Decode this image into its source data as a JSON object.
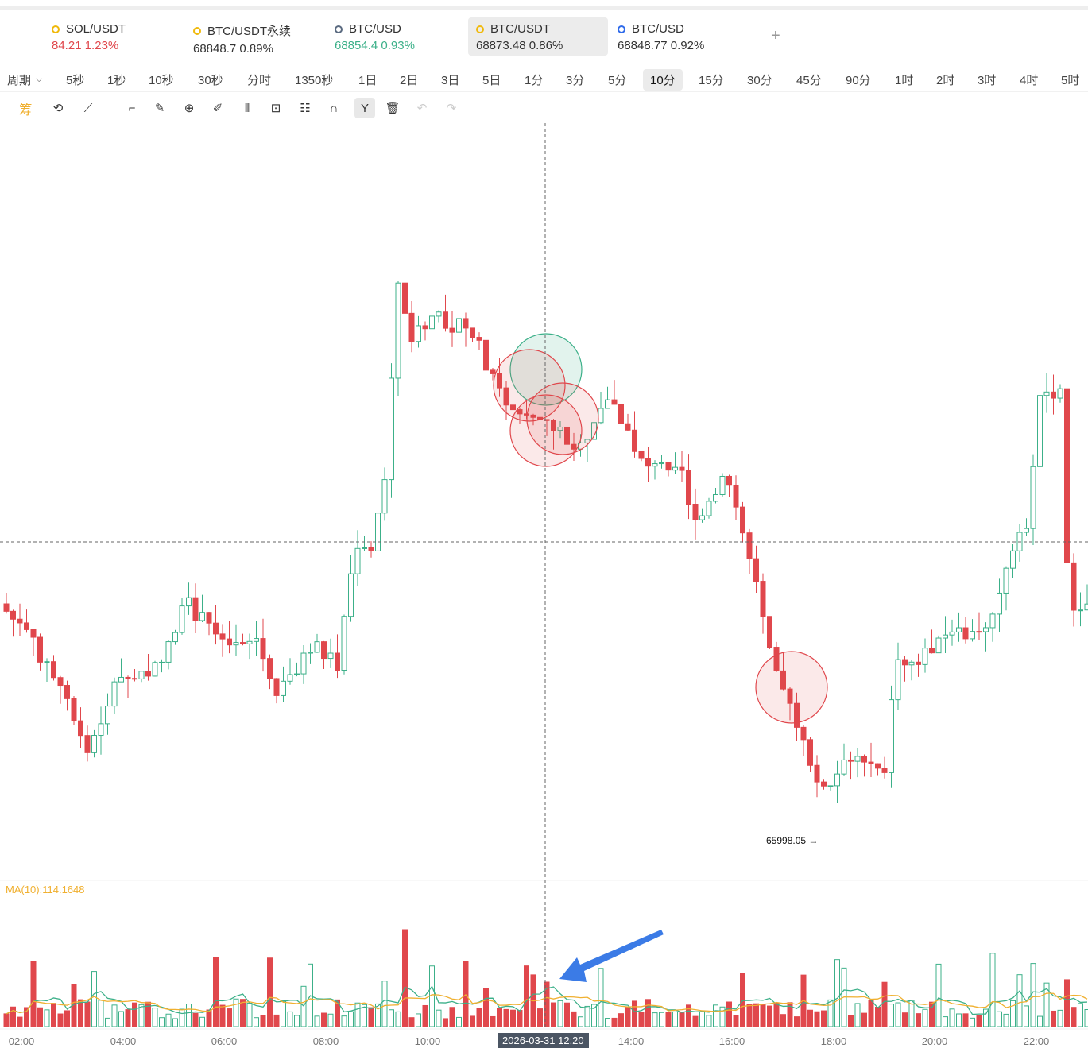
{
  "tickers": [
    {
      "name": "SOL/USDT",
      "price": "84.21",
      "change": "1.23%",
      "color": "#e0474c",
      "icon": "binance-icon"
    },
    {
      "name": "BTC/USDT永续",
      "price": "68848.7",
      "change": "0.89%",
      "color": "#333333",
      "icon": "binance-icon"
    },
    {
      "name": "BTC/USD",
      "price": "68854.4",
      "change": "0.93%",
      "color": "#3cb089",
      "icon": "kraken-icon"
    },
    {
      "name": "BTC/USDT",
      "price": "68873.48",
      "change": "0.86%",
      "color": "#333333",
      "icon": "binance-icon",
      "active": true
    },
    {
      "name": "BTC/USD",
      "price": "68848.77",
      "change": "0.92%",
      "color": "#333333",
      "icon": "coinbase-icon"
    }
  ],
  "add_tab": "+",
  "periods": [
    "周期",
    "5秒",
    "1秒",
    "10秒",
    "30秒",
    "分时",
    "1350秒",
    "1日",
    "2日",
    "3日",
    "5日",
    "1分",
    "3分",
    "5分",
    "10分",
    "15分",
    "30分",
    "45分",
    "90分",
    "1时",
    "2时",
    "3时",
    "4时",
    "5时"
  ],
  "active_period": "10分",
  "tools": [
    "chip-icon",
    "replay-icon",
    "indicator-icon",
    "bookmark-icon",
    "ruler-icon",
    "zoom-in-icon",
    "draw-icon",
    "compare-icon",
    "lock-icon",
    "note-icon",
    "magnet-icon",
    "filter-icon",
    "trash-icon",
    "undo-icon",
    "redo-icon"
  ],
  "tool_chip_label": "筹",
  "ma_label": "MA(10):114.1648",
  "low_label": "65998.05 →",
  "crosshair_time": "2026-03-31 12:20",
  "time_labels": [
    "02:00",
    "04:00",
    "06:00",
    "08:00",
    "10:00",
    "14:00",
    "16:00",
    "18:00",
    "20:00",
    "22:00"
  ],
  "colors": {
    "up": "#3cb089",
    "down": "#e0474c",
    "ma1": "#f0b030",
    "ma2": "#3cb089",
    "arrow": "#3b7be6"
  }
}
